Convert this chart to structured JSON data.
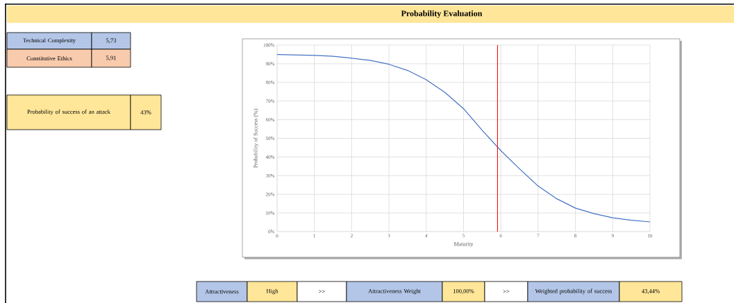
{
  "chart_data": {
    "type": "line",
    "title": "Probability Evaluation",
    "xlabel": "Maturity",
    "ylabel": "Probability of Success (%)",
    "x": [
      0,
      0.5,
      1,
      1.5,
      2,
      2.5,
      3,
      3.5,
      4,
      4.5,
      5,
      5.5,
      6,
      6.5,
      7,
      7.5,
      8,
      8.5,
      9,
      9.5,
      10
    ],
    "series": [
      {
        "color": "#4472c4",
        "values": [
          94.9,
          94.7,
          94.5,
          94.0,
          93.0,
          91.8,
          89.7,
          86.4,
          81.4,
          74.6,
          65.9,
          54.3,
          43.4,
          33.7,
          24.4,
          17.6,
          12.6,
          9.6,
          7.4,
          6.1,
          5.2
        ]
      }
    ],
    "xlim": [
      0,
      10
    ],
    "xticks": [
      0,
      1,
      2,
      3,
      4,
      5,
      6,
      7,
      8,
      9,
      10
    ],
    "ylim": [
      0,
      100
    ],
    "yticks": [
      {
        "value": 0,
        "label": "0%"
      },
      {
        "value": 10,
        "label": "10%"
      },
      {
        "value": 20,
        "label": "20%"
      },
      {
        "value": 30,
        "label": "30%"
      },
      {
        "value": 40,
        "label": "40%"
      },
      {
        "value": 50,
        "label": "50%"
      },
      {
        "value": 60,
        "label": "60%"
      },
      {
        "value": 70,
        "label": "70%"
      },
      {
        "value": 80,
        "label": "80%"
      },
      {
        "value": 90,
        "label": "90%"
      },
      {
        "value": 100,
        "label": "100%"
      }
    ],
    "ref_lines": [
      {
        "axis": "x",
        "value": 5.91,
        "color": "#ff0000"
      }
    ],
    "grid": true,
    "marker": "none",
    "line_style": "solid",
    "annotations": [
      "Technical Complexity",
      "5,73",
      "Constitutive Ethics",
      "5,91",
      "Probability of success of an attack",
      "43%",
      "Attractiveness",
      "High",
      ">>",
      "Attractiveness Weight",
      "100,00%",
      ">>",
      "Weighted probability of success",
      "43,44%"
    ]
  }
}
